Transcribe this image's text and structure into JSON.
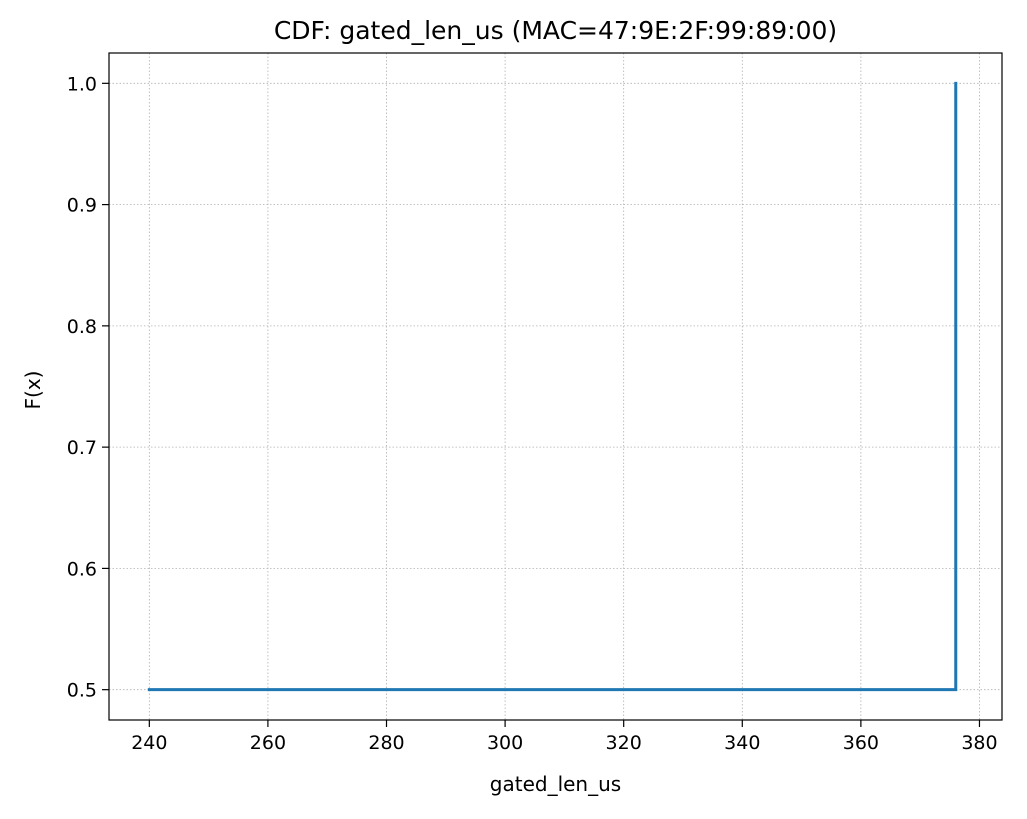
{
  "chart_data": {
    "type": "line",
    "title": "CDF: gated_len_us (MAC=47:9E:2F:99:89:00)",
    "xlabel": "gated_len_us",
    "ylabel": "F(x)",
    "xlim": [
      233.2,
      383.8
    ],
    "ylim": [
      0.475,
      1.025
    ],
    "xticks": [
      240,
      260,
      280,
      300,
      320,
      340,
      360,
      380
    ],
    "yticks": [
      0.5,
      0.6,
      0.7,
      0.8,
      0.9,
      1.0
    ],
    "ytick_labels": [
      "0.5",
      "0.6",
      "0.7",
      "0.8",
      "0.9",
      "1.0"
    ],
    "grid": true,
    "series": [
      {
        "color": "#1f77b4",
        "drawstyle": "steps-post",
        "x": [
          240,
          376,
          376
        ],
        "y": [
          0.5,
          0.5,
          1.0
        ]
      }
    ]
  }
}
